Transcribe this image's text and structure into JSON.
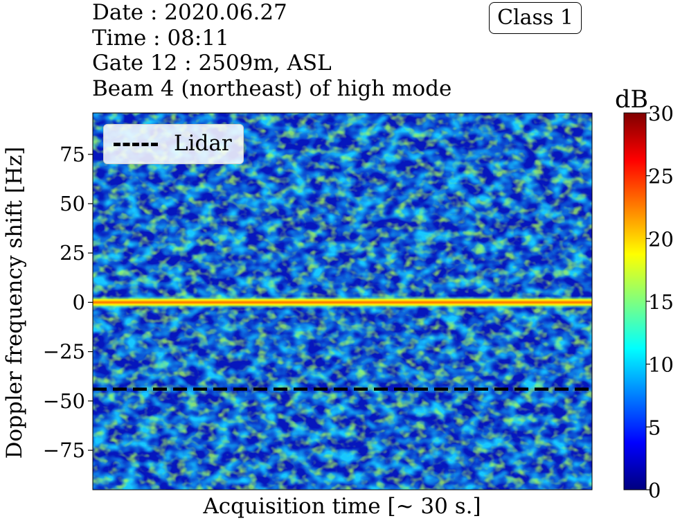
{
  "header": {
    "date_line": "Date : 2020.06.27",
    "time_line": "Time : 08:11",
    "gate_line": "Gate 12 : 2509m, ASL",
    "beam_line": "Beam 4 (northeast) of high mode"
  },
  "badge": {
    "label": "Class 1"
  },
  "colormap": {
    "stops": [
      "#00007f",
      "#0000ff",
      "#007fff",
      "#00ffff",
      "#7fff7f",
      "#ffff00",
      "#ff7f00",
      "#ff0000",
      "#7f0000"
    ]
  },
  "chart_data": {
    "type": "heatmap",
    "xlabel": "Acquisition time [~ 30 s.]",
    "ylabel": "Doppler frequency shift [Hz]",
    "ylim": [
      -95,
      96
    ],
    "yticks": [
      "75",
      "50",
      "25",
      "0",
      "−25",
      "−50",
      "−75"
    ],
    "ytick_values": [
      75,
      50,
      25,
      0,
      -25,
      -50,
      -75
    ],
    "colorbar": {
      "unit": "dB",
      "range": [
        0,
        30
      ],
      "ticks": [
        "30",
        "25",
        "20",
        "15",
        "10",
        "5",
        "0"
      ],
      "tick_values": [
        30,
        25,
        20,
        15,
        10,
        5,
        0
      ]
    },
    "background_level_db": [
      0,
      14
    ],
    "zero_doppler_line": {
      "y": 0,
      "level_db": 24
    },
    "lidar_line": {
      "y": -44,
      "style": "dashed",
      "color": "#000000"
    },
    "legend": {
      "label": "Lidar",
      "placement": "top-left"
    }
  }
}
